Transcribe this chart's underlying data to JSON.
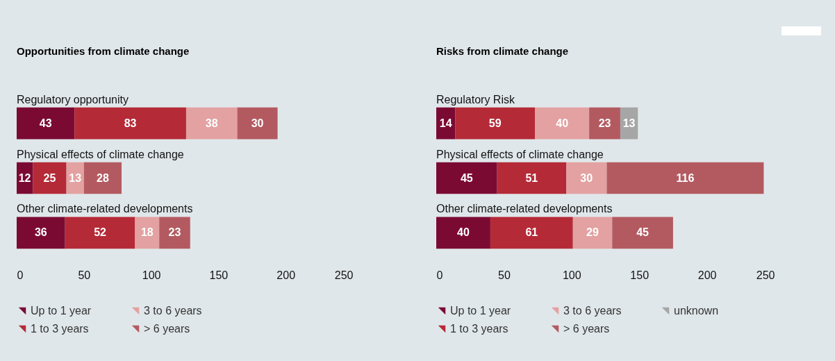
{
  "chart_data": [
    {
      "type": "bar",
      "orientation": "horizontal",
      "stacked": true,
      "title": "Opportunities from climate change",
      "categories": [
        "Regulatory opportunity",
        "Physical effects of climate change",
        "Other climate-related developments"
      ],
      "xlim": [
        0,
        250
      ],
      "xticks": [
        0,
        50,
        100,
        150,
        200,
        250
      ],
      "data_labels": true,
      "legend": "bottom",
      "grid": false,
      "series": [
        {
          "name": "Up to 1 year",
          "color": "#7b0a33",
          "values": [
            43,
            12,
            36
          ]
        },
        {
          "name": "1 to 3 years",
          "color": "#b52a37",
          "values": [
            83,
            25,
            52
          ]
        },
        {
          "name": "3 to 6 years",
          "color": "#e3a1a1",
          "values": [
            38,
            13,
            18
          ]
        },
        {
          "name": "> 6 years",
          "color": "#b35a60",
          "values": [
            30,
            28,
            23
          ]
        }
      ]
    },
    {
      "type": "bar",
      "orientation": "horizontal",
      "stacked": true,
      "title": "Risks from climate change",
      "categories": [
        "Regulatory Risk",
        "Physical effects of climate change",
        "Other climate-related developments"
      ],
      "xlim": [
        0,
        250
      ],
      "xticks": [
        0,
        50,
        100,
        150,
        200,
        250
      ],
      "data_labels": true,
      "legend": "bottom",
      "grid": false,
      "series": [
        {
          "name": "Up to 1 year",
          "color": "#7b0a33",
          "values": [
            14,
            45,
            40
          ]
        },
        {
          "name": "1 to 3 years",
          "color": "#b52a37",
          "values": [
            59,
            51,
            61
          ]
        },
        {
          "name": "3 to 6 years",
          "color": "#e3a1a1",
          "values": [
            40,
            30,
            29
          ]
        },
        {
          "name": "> 6 years",
          "color": "#b35a60",
          "values": [
            23,
            116,
            45
          ]
        },
        {
          "name": "unknown",
          "color": "#a6a6a6",
          "values": [
            13,
            null,
            null
          ]
        }
      ]
    }
  ]
}
